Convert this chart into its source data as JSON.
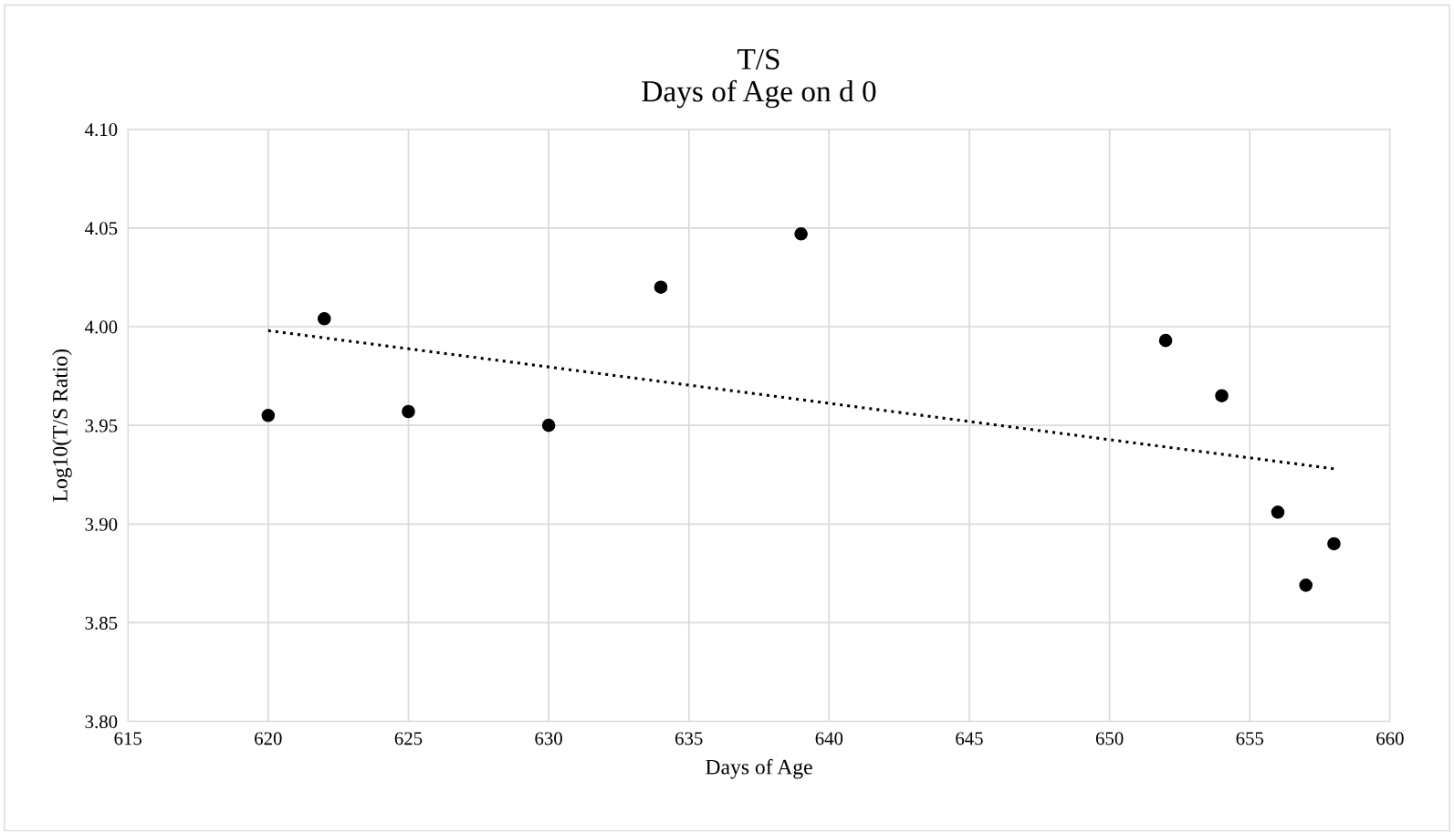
{
  "chart_data": {
    "type": "scatter",
    "title": "T/S\nDays of Age on d 0",
    "xlabel": "Days of Age",
    "ylabel": "Log10(T/S Ratio)",
    "xlim": [
      615,
      660
    ],
    "xticks": [
      615,
      620,
      625,
      630,
      635,
      640,
      645,
      650,
      655,
      660
    ],
    "ylim": [
      3.8,
      4.1
    ],
    "yticks": [
      {
        "value": 3.8,
        "label": "3.80"
      },
      {
        "value": 3.85,
        "label": "3.85"
      },
      {
        "value": 3.9,
        "label": "3.90"
      },
      {
        "value": 3.95,
        "label": "3.95"
      },
      {
        "value": 4.0,
        "label": "4.00"
      },
      {
        "value": 4.05,
        "label": "4.05"
      },
      {
        "value": 4.1,
        "label": "4.10"
      }
    ],
    "grid": true,
    "legend": false,
    "series": [
      {
        "color": "#000000",
        "marker": "circle",
        "x": [
          620,
          622,
          625,
          630,
          634,
          639,
          652,
          654,
          656,
          657,
          658
        ],
        "values": [
          3.955,
          4.004,
          3.957,
          3.95,
          4.02,
          4.047,
          3.993,
          3.965,
          3.906,
          3.869,
          3.89
        ]
      },
      {
        "type": "line",
        "color": "#000000",
        "line_style": "dotted",
        "marker": "none",
        "x": [
          620,
          658
        ],
        "values": [
          3.998,
          3.928
        ]
      }
    ]
  }
}
